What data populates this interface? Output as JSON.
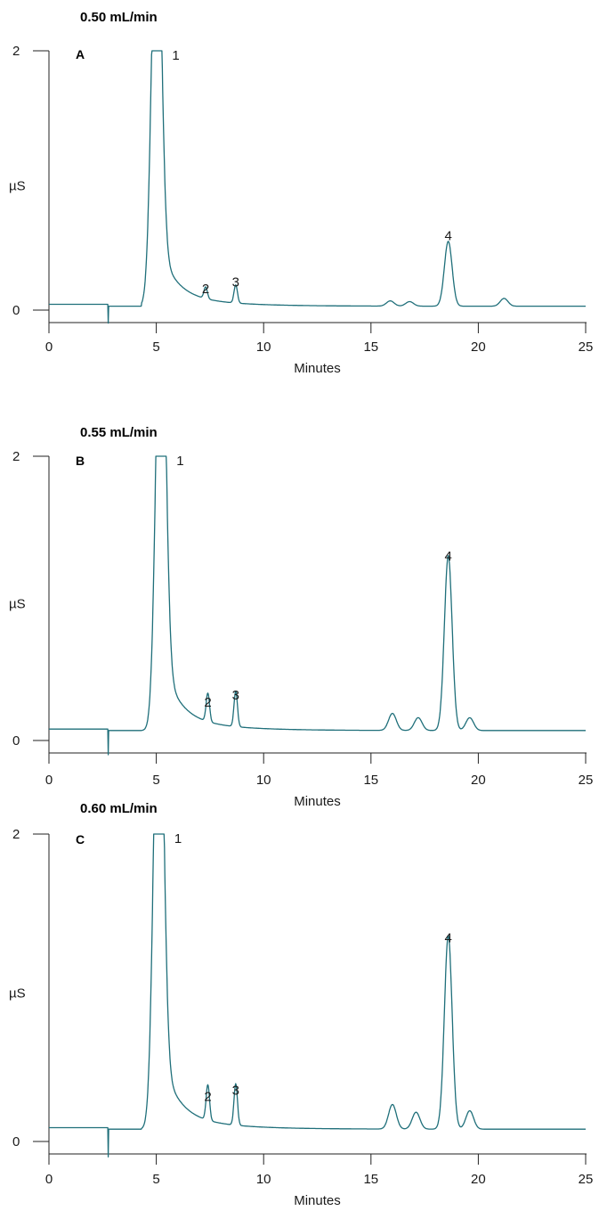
{
  "chart_data": [
    {
      "type": "line",
      "title": "0.50 mL/min",
      "panel_letter": "A",
      "xlabel": "Minutes",
      "ylabel": "µS",
      "xlim": [
        0,
        25
      ],
      "ylim": [
        0,
        2
      ],
      "x_ticks": [
        0,
        5,
        10,
        15,
        20,
        25
      ],
      "y_ticks": [
        0,
        2
      ],
      "color": "#1f6f7a",
      "baseline_before_void": 0.045,
      "void_time": 2.75,
      "baseline": 0.03,
      "peaks": [
        {
          "label": "1",
          "time": 5.0,
          "height": 2.0
        },
        {
          "label": "2",
          "time": 7.3,
          "height": 0.09
        },
        {
          "label": "3",
          "time": 8.7,
          "height": 0.14
        },
        {
          "label": "4",
          "time": 18.6,
          "height": 0.5
        }
      ],
      "minor_peaks": [
        {
          "time": 15.9,
          "height": 0.04
        },
        {
          "time": 16.8,
          "height": 0.035
        },
        {
          "time": 21.2,
          "height": 0.06
        }
      ]
    },
    {
      "type": "line",
      "title": "0.55 mL/min",
      "panel_letter": "B",
      "xlabel": "Minutes",
      "ylabel": "µS",
      "xlim": [
        0,
        25
      ],
      "ylim": [
        0,
        2
      ],
      "x_ticks": [
        0,
        5,
        10,
        15,
        20,
        25
      ],
      "y_ticks": [
        0,
        2
      ],
      "color": "#1f6f7a",
      "baseline_before_void": 0.08,
      "void_time": 2.75,
      "baseline": 0.07,
      "peaks": [
        {
          "label": "1",
          "time": 5.2,
          "height": 2.0
        },
        {
          "label": "2",
          "time": 7.4,
          "height": 0.2
        },
        {
          "label": "3",
          "time": 8.7,
          "height": 0.25
        },
        {
          "label": "4",
          "time": 18.6,
          "height": 1.23
        }
      ],
      "minor_peaks": [
        {
          "time": 16.0,
          "height": 0.12
        },
        {
          "time": 17.2,
          "height": 0.09
        },
        {
          "time": 19.6,
          "height": 0.09
        }
      ]
    },
    {
      "type": "line",
      "title": "0.60 mL/min",
      "panel_letter": "C",
      "xlabel": "Minutes",
      "ylabel": "µS",
      "xlim": [
        0,
        25
      ],
      "ylim": [
        0,
        2
      ],
      "x_ticks": [
        0,
        5,
        10,
        15,
        20,
        25
      ],
      "y_ticks": [
        0,
        2
      ],
      "color": "#1f6f7a",
      "baseline_before_void": 0.09,
      "void_time": 2.75,
      "baseline": 0.08,
      "peaks": [
        {
          "label": "1",
          "time": 5.1,
          "height": 2.0
        },
        {
          "label": "2",
          "time": 7.4,
          "height": 0.23
        },
        {
          "label": "3",
          "time": 8.7,
          "height": 0.27
        },
        {
          "label": "4",
          "time": 18.6,
          "height": 1.26
        }
      ],
      "minor_peaks": [
        {
          "time": 16.0,
          "height": 0.16
        },
        {
          "time": 17.1,
          "height": 0.11
        },
        {
          "time": 19.6,
          "height": 0.12
        }
      ]
    }
  ]
}
